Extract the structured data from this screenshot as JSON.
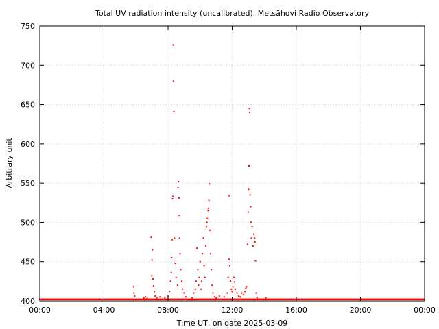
{
  "chart_data": {
    "type": "scatter",
    "title": "Total UV radiation intensity (uncalibrated). Metsähovi Radio Observatory",
    "xlabel": "Time UT, on date 2025-03-09",
    "ylabel": "Arbitrary unit",
    "x_unit": "hours UT",
    "xlim": [
      0,
      24
    ],
    "ylim": [
      400,
      750
    ],
    "x_ticks": [
      0,
      4,
      8,
      12,
      16,
      20,
      24
    ],
    "x_tick_labels": [
      "00:00",
      "04:00",
      "08:00",
      "12:00",
      "16:00",
      "20:00",
      "00:00"
    ],
    "y_ticks": [
      400,
      450,
      500,
      550,
      600,
      650,
      700,
      750
    ],
    "y_tick_labels": [
      "400",
      "450",
      "500",
      "550",
      "600",
      "650",
      "700",
      "750"
    ],
    "grid": true,
    "legend": "none",
    "baseline": {
      "value": 402,
      "x_range": [
        0,
        24
      ]
    },
    "series": [
      {
        "color": "#ff0000",
        "points": [
          [
            5.85,
            418
          ],
          [
            5.88,
            410
          ],
          [
            5.92,
            406
          ],
          [
            6.5,
            404
          ],
          [
            6.6,
            405
          ],
          [
            6.7,
            403
          ],
          [
            6.95,
            481
          ],
          [
            6.98,
            432
          ],
          [
            7.0,
            452
          ],
          [
            7.03,
            465
          ],
          [
            7.06,
            428
          ],
          [
            7.1,
            419
          ],
          [
            7.15,
            412
          ],
          [
            7.2,
            406
          ],
          [
            7.3,
            404
          ],
          [
            7.5,
            405
          ],
          [
            7.8,
            404
          ],
          [
            8.0,
            406
          ],
          [
            8.1,
            412
          ],
          [
            8.15,
            425
          ],
          [
            8.2,
            436
          ],
          [
            8.22,
            455
          ],
          [
            8.25,
            478
          ],
          [
            8.28,
            530
          ],
          [
            8.3,
            533
          ],
          [
            8.32,
            726
          ],
          [
            8.34,
            680
          ],
          [
            8.36,
            641
          ],
          [
            8.4,
            480
          ],
          [
            8.45,
            448
          ],
          [
            8.5,
            430
          ],
          [
            8.6,
            420
          ],
          [
            8.62,
            544
          ],
          [
            8.65,
            552
          ],
          [
            8.68,
            531
          ],
          [
            8.7,
            509
          ],
          [
            8.72,
            480
          ],
          [
            8.75,
            460
          ],
          [
            8.8,
            440
          ],
          [
            8.85,
            425
          ],
          [
            8.9,
            415
          ],
          [
            9.0,
            410
          ],
          [
            9.1,
            405
          ],
          [
            9.5,
            404
          ],
          [
            9.6,
            410
          ],
          [
            9.7,
            415
          ],
          [
            9.75,
            425
          ],
          [
            9.8,
            467
          ],
          [
            9.85,
            440
          ],
          [
            9.9,
            420
          ],
          [
            9.95,
            430
          ],
          [
            10.0,
            450
          ],
          [
            10.05,
            415
          ],
          [
            10.1,
            425
          ],
          [
            10.15,
            460
          ],
          [
            10.2,
            480
          ],
          [
            10.25,
            445
          ],
          [
            10.3,
            430
          ],
          [
            10.35,
            470
          ],
          [
            10.4,
            495
          ],
          [
            10.42,
            500
          ],
          [
            10.45,
            505
          ],
          [
            10.5,
            515
          ],
          [
            10.52,
            518
          ],
          [
            10.55,
            528
          ],
          [
            10.58,
            549
          ],
          [
            10.6,
            490
          ],
          [
            10.65,
            460
          ],
          [
            10.7,
            440
          ],
          [
            10.75,
            420
          ],
          [
            10.8,
            410
          ],
          [
            10.9,
            405
          ],
          [
            11.0,
            404
          ],
          [
            11.2,
            406
          ],
          [
            11.5,
            405
          ],
          [
            11.7,
            410
          ],
          [
            11.75,
            430
          ],
          [
            11.8,
            453
          ],
          [
            11.82,
            534
          ],
          [
            11.85,
            445
          ],
          [
            11.9,
            425
          ],
          [
            11.95,
            415
          ],
          [
            12.0,
            412
          ],
          [
            12.05,
            418
          ],
          [
            12.1,
            430
          ],
          [
            12.15,
            424
          ],
          [
            12.2,
            415
          ],
          [
            12.3,
            410
          ],
          [
            12.4,
            406
          ],
          [
            12.5,
            405
          ],
          [
            12.6,
            410
          ],
          [
            12.7,
            408
          ],
          [
            12.8,
            412
          ],
          [
            12.85,
            416
          ],
          [
            12.9,
            418
          ],
          [
            12.95,
            472
          ],
          [
            13.0,
            513
          ],
          [
            13.02,
            542
          ],
          [
            13.05,
            572
          ],
          [
            13.07,
            645
          ],
          [
            13.09,
            640
          ],
          [
            13.12,
            535
          ],
          [
            13.15,
            520
          ],
          [
            13.18,
            500
          ],
          [
            13.2,
            480
          ],
          [
            13.25,
            495
          ],
          [
            13.3,
            470
          ],
          [
            13.35,
            485
          ],
          [
            13.4,
            480
          ],
          [
            13.42,
            475
          ],
          [
            13.45,
            451
          ],
          [
            13.5,
            410
          ],
          [
            13.55,
            404
          ],
          [
            14.1,
            404
          ]
        ]
      }
    ]
  }
}
